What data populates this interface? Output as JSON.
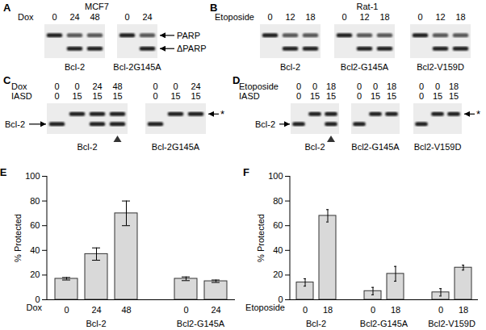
{
  "figure": {
    "panels": [
      {
        "label": "A",
        "title": "MCF7",
        "rows": [
          {
            "name": "Dox",
            "values": [
              [
                0,
                24,
                48
              ],
              [
                0,
                24
              ]
            ]
          }
        ],
        "blots": [
          "Bcl-2",
          "Bcl-2G145A"
        ],
        "band_labels": [
          "PARP",
          "ΔPARP"
        ]
      },
      {
        "label": "B",
        "title": "Rat-1",
        "rows": [
          {
            "name": "Etoposide",
            "values": [
              [
                0,
                12,
                18
              ],
              [
                0,
                12,
                18
              ],
              [
                0,
                12,
                18
              ]
            ]
          }
        ],
        "blots": [
          "Bcl-2",
          "Bcl2-G145A",
          "Bcl2-V159D"
        ]
      },
      {
        "label": "C",
        "rows": [
          {
            "name": "Dox",
            "values": [
              [
                0,
                0,
                24,
                48
              ],
              [
                0,
                0,
                24
              ]
            ]
          },
          {
            "name": "IASD",
            "values": [
              [
                0,
                15,
                15,
                15
              ],
              [
                0,
                15,
                15
              ]
            ]
          }
        ],
        "blots": [
          "Bcl-2",
          "Bcl-2G145A"
        ],
        "left_band": "Bcl-2",
        "right_band": "*"
      },
      {
        "label": "D",
        "rows": [
          {
            "name": "Etoposide",
            "values": [
              [
                0,
                0,
                18
              ],
              [
                0,
                0,
                18
              ],
              [
                0,
                0,
                18
              ]
            ]
          },
          {
            "name": "IASD",
            "values": [
              [
                0,
                15,
                15
              ],
              [
                0,
                15,
                15
              ],
              [
                0,
                15,
                15
              ]
            ]
          }
        ],
        "blots": [
          "Bcl-2",
          "Bcl2-G145A",
          "Bcl2-V159D"
        ],
        "left_band": "Bcl-2",
        "right_band": "*"
      }
    ]
  },
  "chart_data": [
    {
      "type": "bar",
      "panel_label": "E",
      "y_label": "% Protected",
      "x_label": "Dox",
      "ylim": [
        0,
        100
      ],
      "yticks": [
        0,
        20,
        40,
        60,
        80,
        100
      ],
      "color": "#d9d9d9",
      "groups": [
        {
          "name": "Bcl-2",
          "categories": [
            0,
            24,
            48
          ],
          "values": [
            17,
            37,
            70
          ],
          "errors": [
            1,
            5,
            10
          ]
        },
        {
          "name": "Bcl2-G145A",
          "categories": [
            0,
            24
          ],
          "values": [
            17,
            15
          ],
          "errors": [
            1.5,
            1
          ]
        }
      ]
    },
    {
      "type": "bar",
      "panel_label": "F",
      "y_label": "% Protected",
      "x_label": "Etoposide",
      "ylim": [
        0,
        100
      ],
      "yticks": [
        0,
        20,
        40,
        60,
        80,
        100
      ],
      "color": "#d9d9d9",
      "groups": [
        {
          "name": "Bcl-2",
          "categories": [
            0,
            18
          ],
          "values": [
            14,
            68
          ],
          "errors": [
            3,
            5
          ]
        },
        {
          "name": "Bcl2-G145A",
          "categories": [
            0,
            18
          ],
          "values": [
            7,
            21
          ],
          "errors": [
            3,
            6
          ]
        },
        {
          "name": "Bcl2-V159D",
          "categories": [
            0,
            18
          ],
          "values": [
            6,
            26
          ],
          "errors": [
            3,
            2
          ]
        }
      ]
    }
  ]
}
